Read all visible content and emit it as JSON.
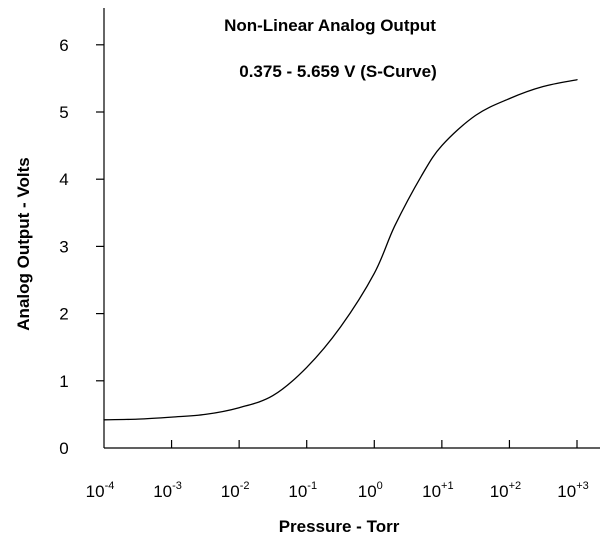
{
  "chart_data": {
    "type": "line",
    "title": "Non-Linear Analog Output",
    "subtitle": "0.375 - 5.659 V (S-Curve)",
    "xlabel": "Pressure - Torr",
    "ylabel": "Analog Output - Volts",
    "xscale": "log",
    "xlim": [
      0.0001,
      1000
    ],
    "ylim": [
      0,
      6.5
    ],
    "x_ticks": [
      {
        "base": "10",
        "exp": "-4"
      },
      {
        "base": "10",
        "exp": "-3"
      },
      {
        "base": "10",
        "exp": "-2"
      },
      {
        "base": "10",
        "exp": "-1"
      },
      {
        "base": "10",
        "exp": "0"
      },
      {
        "base": "10",
        "exp": "+1"
      },
      {
        "base": "10",
        "exp": "+2"
      },
      {
        "base": "10",
        "exp": "+3"
      }
    ],
    "y_ticks": [
      "0",
      "1",
      "2",
      "3",
      "4",
      "5",
      "6"
    ],
    "grid": false,
    "legend": "none",
    "series": [
      {
        "x": [
          0.0001,
          0.000316,
          0.001,
          0.00316,
          0.01,
          0.0316,
          0.1,
          0.316,
          1,
          2,
          5,
          10,
          31.6,
          100,
          316,
          1000
        ],
        "y": [
          0.42,
          0.43,
          0.46,
          0.5,
          0.6,
          0.78,
          1.2,
          1.8,
          2.6,
          3.3,
          4.05,
          4.5,
          4.95,
          5.2,
          5.38,
          5.48
        ]
      }
    ]
  }
}
